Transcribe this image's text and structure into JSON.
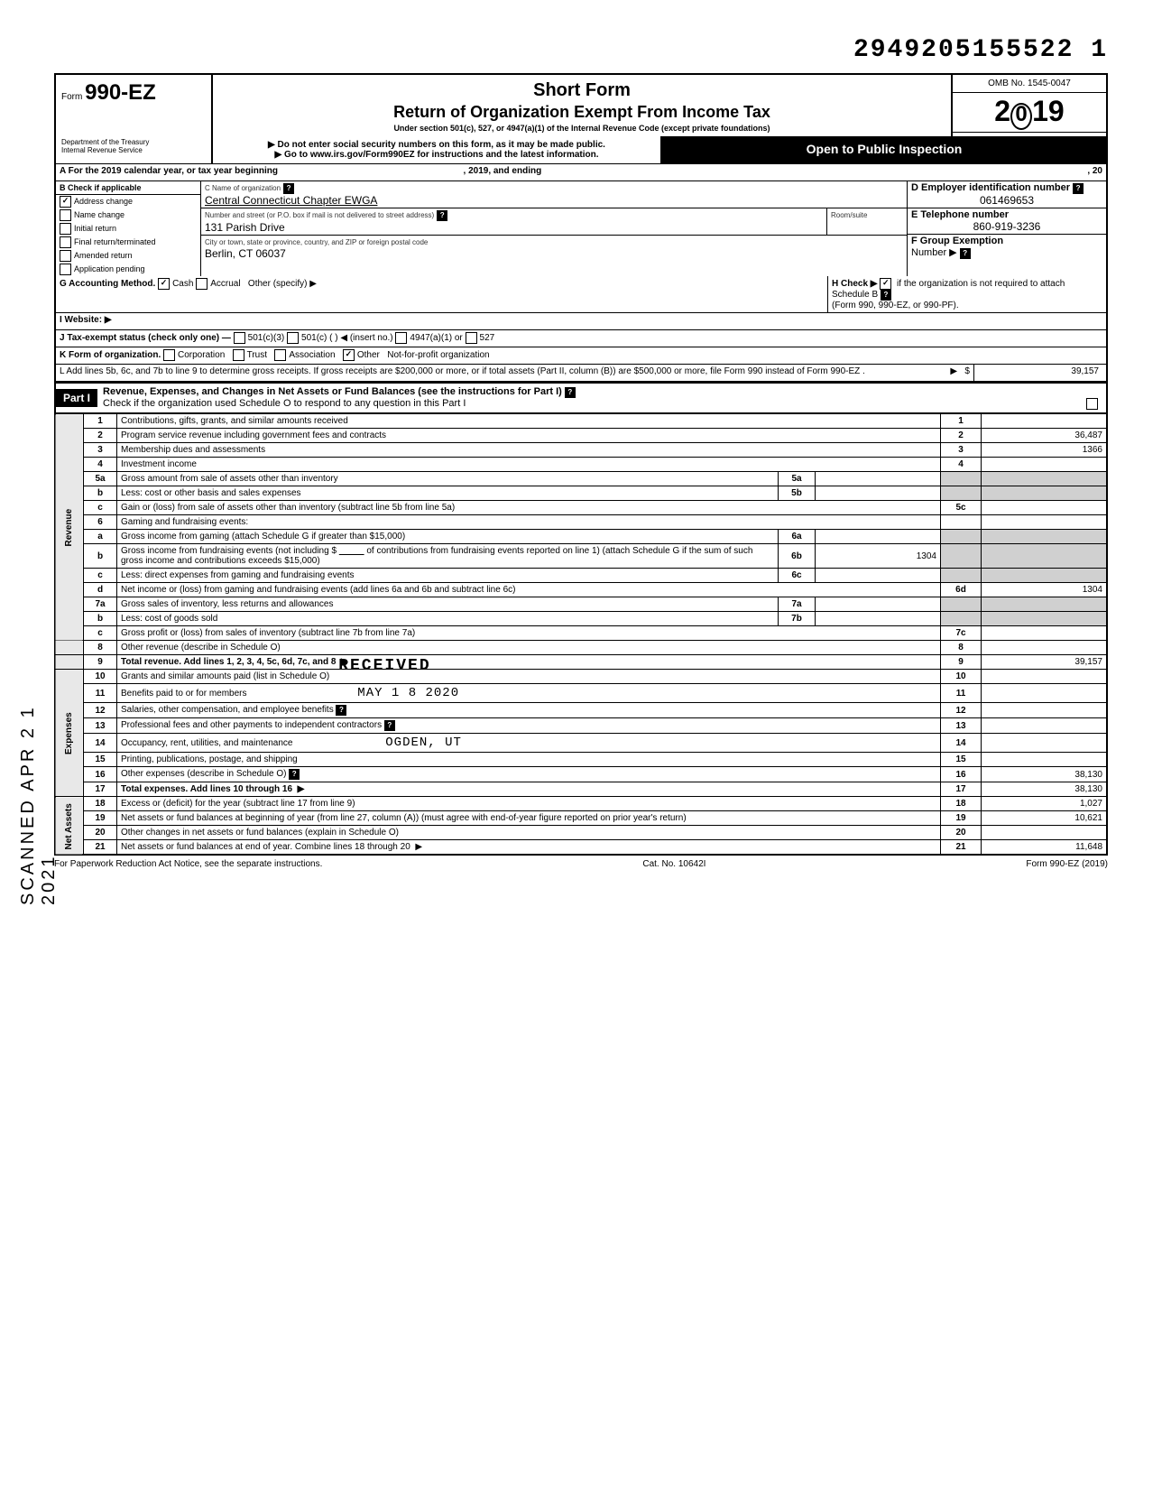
{
  "page_stamp": "2949205155522  1",
  "header": {
    "short_form": "Short Form",
    "title": "Return of Organization Exempt From Income Tax",
    "subtitle": "Under section 501(c), 527, or 4947(a)(1) of the Internal Revenue Code (except private foundations)",
    "warn1": "Do not enter social security numbers on this form, as it may be made public.",
    "warn2": "Go to www.irs.gov/Form990EZ for instructions and the latest information.",
    "form_prefix": "Form",
    "form_num": "990-EZ",
    "omb": "OMB No. 1545-0047",
    "year": "2019",
    "open": "Open to Public Inspection",
    "dept": "Department of the Treasury\nInternal Revenue Service"
  },
  "section_a": {
    "a_label": "A  For the 2019 calendar year, or tax year beginning",
    "a_mid": ", 2019, and ending",
    "a_end": ", 20",
    "b_label": "B  Check if applicable",
    "b_items": [
      {
        "label": "Address change",
        "checked": true
      },
      {
        "label": "Name change",
        "checked": false
      },
      {
        "label": "Initial return",
        "checked": false
      },
      {
        "label": "Final return/terminated",
        "checked": false
      },
      {
        "label": "Amended return",
        "checked": false
      },
      {
        "label": "Application pending",
        "checked": false
      }
    ],
    "c_label": "C  Name of organization",
    "c_value": "Central Connecticut Chapter EWGA",
    "addr_label": "Number and street (or P.O. box if mail is not delivered to street address)",
    "room_label": "Room/suite",
    "addr_value": "131 Parish Drive",
    "city_label": "City or town, state or province, country, and ZIP or foreign postal code",
    "city_value": "Berlin, CT  06037",
    "d_label": "D Employer identification number",
    "d_value": "061469653",
    "e_label": "E  Telephone number",
    "e_value": "860-919-3236",
    "f_label": "F  Group Exemption",
    "f_label2": "Number  ▶",
    "g_label": "G  Accounting Method.",
    "g_cash": "Cash",
    "g_accrual": "Accrual",
    "g_other": "Other (specify) ▶",
    "h_label": "H  Check ▶",
    "h_text": "if the organization is not required to attach Schedule B",
    "h_sub": "(Form 990, 990-EZ, or 990-PF).",
    "i_label": "I   Website: ▶",
    "j_label": "J  Tax-exempt status (check only one) —",
    "j_501c3": "501(c)(3)",
    "j_501c": "501(c) (",
    "j_insert": ") ◀ (insert no.)",
    "j_4947": "4947(a)(1) or",
    "j_527": "527",
    "k_label": "K  Form of organization.",
    "k_corp": "Corporation",
    "k_trust": "Trust",
    "k_assoc": "Association",
    "k_other": "Other",
    "k_other_val": "Not-for-profit organization",
    "l_text": "L  Add lines 5b, 6c, and 7b to line 9 to determine gross receipts. If gross receipts are $200,000 or more, or if total assets (Part II, column (B)) are $500,000 or more, file Form 990 instead of Form 990-EZ .",
    "l_amt": "39,157"
  },
  "part1": {
    "label": "Part I",
    "title": "Revenue, Expenses, and Changes in Net Assets or Fund Balances (see the instructions for Part I)",
    "check_line": "Check if the organization used Schedule O to respond to any question in this Part I"
  },
  "side_labels": {
    "revenue": "Revenue",
    "expenses": "Expenses",
    "netassets": "Net Assets"
  },
  "lines": {
    "l1": {
      "num": "1",
      "desc": "Contributions, gifts, grants, and similar amounts received",
      "box": "1",
      "amt": ""
    },
    "l2": {
      "num": "2",
      "desc": "Program service revenue including government fees and contracts",
      "box": "2",
      "amt": "36,487"
    },
    "l3": {
      "num": "3",
      "desc": "Membership dues and assessments",
      "box": "3",
      "amt": "1366"
    },
    "l4": {
      "num": "4",
      "desc": "Investment income",
      "box": "4",
      "amt": ""
    },
    "l5a": {
      "num": "5a",
      "desc": "Gross amount from sale of assets other than inventory",
      "ibox": "5a",
      "iamt": ""
    },
    "l5b": {
      "num": "b",
      "desc": "Less: cost or other basis and sales expenses",
      "ibox": "5b",
      "iamt": ""
    },
    "l5c": {
      "num": "c",
      "desc": "Gain or (loss) from sale of assets other than inventory (subtract line 5b from line 5a)",
      "box": "5c",
      "amt": ""
    },
    "l6": {
      "num": "6",
      "desc": "Gaming and fundraising events:"
    },
    "l6a": {
      "num": "a",
      "desc": "Gross income from gaming (attach Schedule G if greater than $15,000)",
      "ibox": "6a",
      "iamt": ""
    },
    "l6b": {
      "num": "b",
      "desc": "Gross income from fundraising events (not including  $",
      "desc2": "of contributions from fundraising events reported on line 1) (attach Schedule G if the sum of such gross income and contributions exceeds $15,000)",
      "ibox": "6b",
      "iamt": "1304"
    },
    "l6c": {
      "num": "c",
      "desc": "Less: direct expenses from gaming and fundraising events",
      "ibox": "6c",
      "iamt": ""
    },
    "l6d": {
      "num": "d",
      "desc": "Net income or (loss) from gaming and fundraising events (add lines 6a and 6b and subtract line 6c)",
      "box": "6d",
      "amt": "1304"
    },
    "l7a": {
      "num": "7a",
      "desc": "Gross sales of inventory, less returns and allowances",
      "ibox": "7a",
      "iamt": ""
    },
    "l7b": {
      "num": "b",
      "desc": "Less: cost of goods sold",
      "ibox": "7b",
      "iamt": ""
    },
    "l7c": {
      "num": "c",
      "desc": "Gross profit or (loss) from sales of inventory (subtract line 7b from line 7a)",
      "box": "7c",
      "amt": ""
    },
    "l8": {
      "num": "8",
      "desc": "Other revenue (describe in Schedule O)",
      "box": "8",
      "amt": ""
    },
    "l9": {
      "num": "9",
      "desc": "Total revenue. Add lines 1, 2, 3, 4, 5c, 6d, 7c, and 8",
      "box": "9",
      "amt": "39,157"
    },
    "l10": {
      "num": "10",
      "desc": "Grants and similar amounts paid (list in Schedule O)",
      "box": "10",
      "amt": ""
    },
    "l11": {
      "num": "11",
      "desc": "Benefits paid to or for members",
      "box": "11",
      "amt": ""
    },
    "l12": {
      "num": "12",
      "desc": "Salaries, other compensation, and employee benefits",
      "box": "12",
      "amt": ""
    },
    "l13": {
      "num": "13",
      "desc": "Professional fees and other payments to independent contractors",
      "box": "13",
      "amt": ""
    },
    "l14": {
      "num": "14",
      "desc": "Occupancy, rent, utilities, and maintenance",
      "box": "14",
      "amt": ""
    },
    "l15": {
      "num": "15",
      "desc": "Printing, publications, postage, and shipping",
      "box": "15",
      "amt": ""
    },
    "l16": {
      "num": "16",
      "desc": "Other expenses (describe in Schedule O)",
      "box": "16",
      "amt": "38,130"
    },
    "l17": {
      "num": "17",
      "desc": "Total expenses. Add lines 10 through 16",
      "box": "17",
      "amt": "38,130"
    },
    "l18": {
      "num": "18",
      "desc": "Excess or (deficit) for the year (subtract line 17 from line 9)",
      "box": "18",
      "amt": "1,027"
    },
    "l19": {
      "num": "19",
      "desc": "Net assets or fund balances at beginning of year (from line 27, column (A)) (must agree with end-of-year figure reported on prior year's return)",
      "box": "19",
      "amt": "10,621"
    },
    "l20": {
      "num": "20",
      "desc": "Other changes in net assets or fund balances (explain in Schedule O)",
      "box": "20",
      "amt": ""
    },
    "l21": {
      "num": "21",
      "desc": "Net assets or fund balances at end of year. Combine lines 18 through 20",
      "box": "21",
      "amt": "11,648"
    }
  },
  "stamps": {
    "received": "RECEIVED",
    "date": "MAY 1 8 2020",
    "ogden": "OGDEN, UT",
    "scanned": "SCANNED  APR 2 1 2021"
  },
  "footer": {
    "paperwork": "For Paperwork Reduction Act Notice, see the separate instructions.",
    "cat": "Cat. No. 10642I",
    "form": "Form 990-EZ (2019)"
  }
}
